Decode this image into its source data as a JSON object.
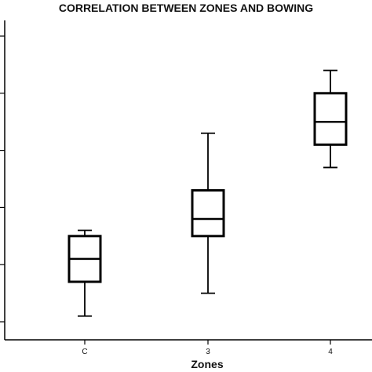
{
  "chart_data": {
    "type": "box",
    "title": "CORRELATION BETWEEN ZONES AND BOWING",
    "xlabel": "Zones",
    "ylabel": "",
    "categories": [
      "C",
      "3",
      "4"
    ],
    "boxes": [
      {
        "category": "C",
        "whisker_low": 0.1,
        "q1": 0.7,
        "median": 1.1,
        "q3": 1.5,
        "whisker_high": 1.6
      },
      {
        "category": "3",
        "whisker_low": 0.5,
        "q1": 1.5,
        "median": 1.8,
        "q3": 2.3,
        "whisker_high": 3.3
      },
      {
        "category": "4",
        "whisker_low": 2.7,
        "q1": 3.1,
        "median": 3.5,
        "q3": 4.0,
        "whisker_high": 4.4
      }
    ],
    "ylim": [
      0,
      5
    ],
    "y_ticks": [
      0,
      1,
      2,
      3,
      4,
      5
    ],
    "y_tick_labels_visible": false,
    "grid": false
  }
}
